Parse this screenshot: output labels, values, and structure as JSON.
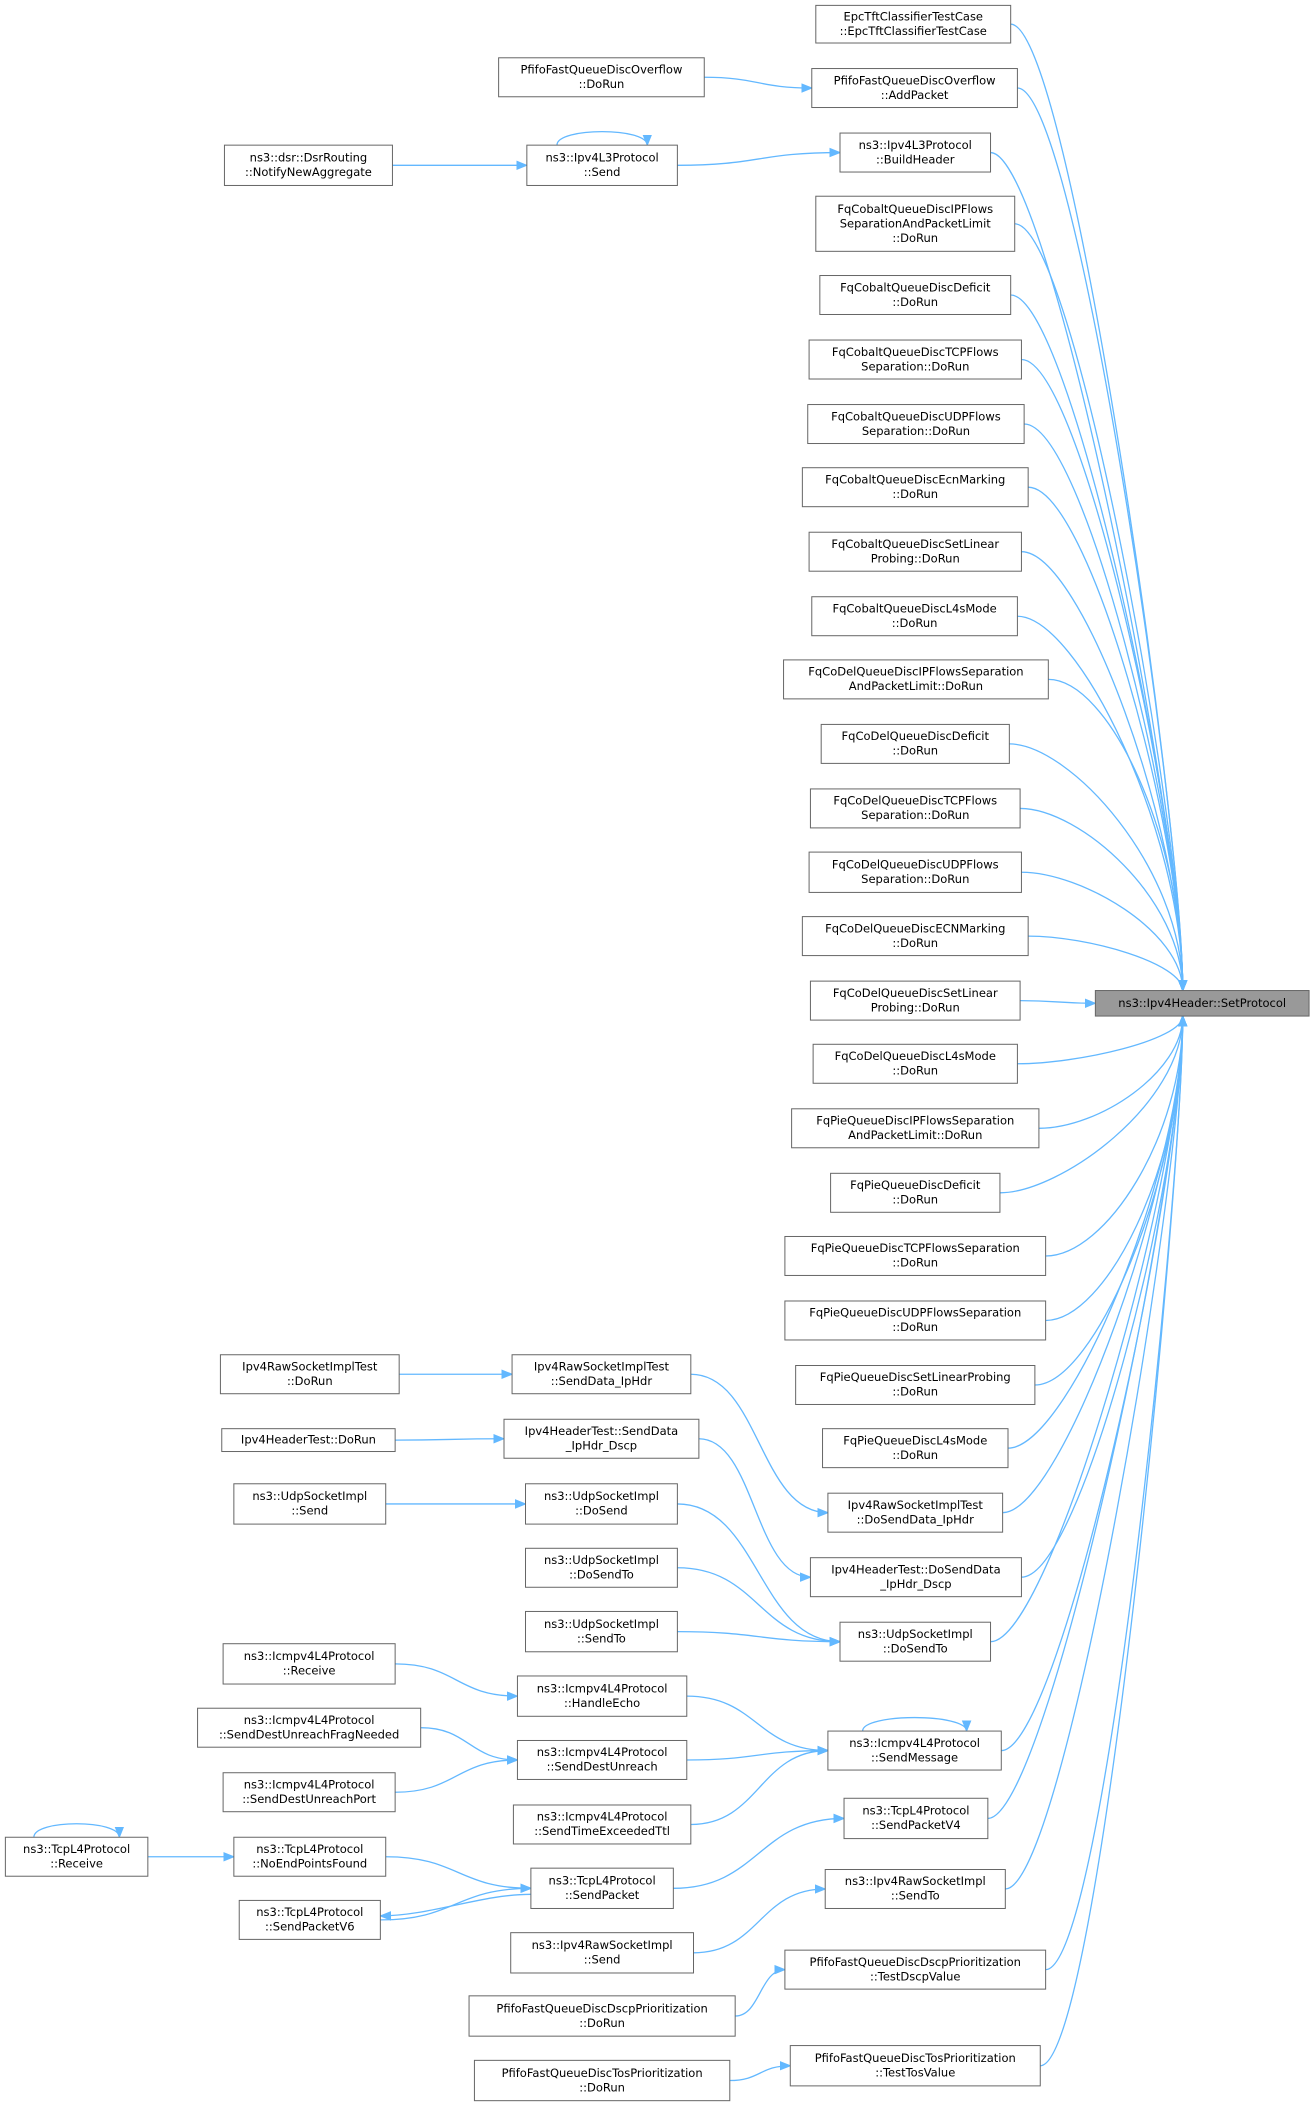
{
  "nodes": [
    {
      "lines": [
        "ns3::Ipv4Header::SetProtocol"
      ]
    },
    {
      "lines": [
        "EpcTftClassifierTestCase",
        "::EpcTftClassifierTestCase"
      ]
    },
    {
      "lines": [
        "PfifoFastQueueDiscOverflow",
        "::AddPacket"
      ]
    },
    {
      "lines": [
        "ns3::Ipv4L3Protocol",
        "::BuildHeader"
      ]
    },
    {
      "lines": [
        "FqCobaltQueueDiscIPFlows",
        "SeparationAndPacketLimit",
        "::DoRun"
      ]
    },
    {
      "lines": [
        "FqCobaltQueueDiscDeficit",
        "::DoRun"
      ]
    },
    {
      "lines": [
        "FqCobaltQueueDiscTCPFlows",
        "Separation::DoRun"
      ]
    },
    {
      "lines": [
        "FqCobaltQueueDiscUDPFlows",
        "Separation::DoRun"
      ]
    },
    {
      "lines": [
        "FqCobaltQueueDiscEcnMarking",
        "::DoRun"
      ]
    },
    {
      "lines": [
        "FqCobaltQueueDiscSetLinear",
        "Probing::DoRun"
      ]
    },
    {
      "lines": [
        "FqCobaltQueueDiscL4sMode",
        "::DoRun"
      ]
    },
    {
      "lines": [
        "FqCoDelQueueDiscIPFlowsSeparation",
        "AndPacketLimit::DoRun"
      ]
    },
    {
      "lines": [
        "FqCoDelQueueDiscDeficit",
        "::DoRun"
      ]
    },
    {
      "lines": [
        "FqCoDelQueueDiscTCPFlows",
        "Separation::DoRun"
      ]
    },
    {
      "lines": [
        "FqCoDelQueueDiscUDPFlows",
        "Separation::DoRun"
      ]
    },
    {
      "lines": [
        "FqCoDelQueueDiscECNMarking",
        "::DoRun"
      ]
    },
    {
      "lines": [
        "FqCoDelQueueDiscSetLinear",
        "Probing::DoRun"
      ]
    },
    {
      "lines": [
        "FqCoDelQueueDiscL4sMode",
        "::DoRun"
      ]
    },
    {
      "lines": [
        "FqPieQueueDiscIPFlowsSeparation",
        "AndPacketLimit::DoRun"
      ]
    },
    {
      "lines": [
        "FqPieQueueDiscDeficit",
        "::DoRun"
      ]
    },
    {
      "lines": [
        "FqPieQueueDiscTCPFlowsSeparation",
        "::DoRun"
      ]
    },
    {
      "lines": [
        "FqPieQueueDiscUDPFlowsSeparation",
        "::DoRun"
      ]
    },
    {
      "lines": [
        "FqPieQueueDiscSetLinearProbing",
        "::DoRun"
      ]
    },
    {
      "lines": [
        "FqPieQueueDiscL4sMode",
        "::DoRun"
      ]
    },
    {
      "lines": [
        "Ipv4RawSocketImplTest",
        "::DoSendData_IpHdr"
      ]
    },
    {
      "lines": [
        "Ipv4HeaderTest::DoSendData",
        "_IpHdr_Dscp"
      ]
    },
    {
      "lines": [
        "ns3::UdpSocketImpl",
        "::DoSendTo"
      ]
    },
    {
      "lines": [
        "ns3::Icmpv4L4Protocol",
        "::SendMessage"
      ]
    },
    {
      "lines": [
        "ns3::TcpL4Protocol",
        "::SendPacketV4"
      ]
    },
    {
      "lines": [
        "ns3::Ipv4RawSocketImpl",
        "::SendTo"
      ]
    },
    {
      "lines": [
        "PfifoFastQueueDiscDscpPrioritization",
        "::TestDscpValue"
      ]
    },
    {
      "lines": [
        "PfifoFastQueueDiscTosPrioritization",
        "::TestTosValue"
      ]
    },
    {
      "lines": [
        "PfifoFastQueueDiscOverflow",
        "::DoRun"
      ]
    },
    {
      "lines": [
        "ns3::Ipv4L3Protocol",
        "::Send"
      ]
    },
    {
      "lines": [
        "Ipv4RawSocketImplTest",
        "::SendData_IpHdr"
      ]
    },
    {
      "lines": [
        "Ipv4HeaderTest::SendData",
        "_IpHdr_Dscp"
      ]
    },
    {
      "lines": [
        "ns3::UdpSocketImpl",
        "::DoSend"
      ]
    },
    {
      "lines": [
        "ns3::UdpSocketImpl",
        "::DoSendTo"
      ]
    },
    {
      "lines": [
        "ns3::UdpSocketImpl",
        "::SendTo"
      ]
    },
    {
      "lines": [
        "ns3::Icmpv4L4Protocol",
        "::HandleEcho"
      ]
    },
    {
      "lines": [
        "ns3::Icmpv4L4Protocol",
        "::SendDestUnreach"
      ]
    },
    {
      "lines": [
        "ns3::Icmpv4L4Protocol",
        "::SendTimeExceededTtl"
      ]
    },
    {
      "lines": [
        "ns3::TcpL4Protocol",
        "::SendPacket"
      ]
    },
    {
      "lines": [
        "ns3::Ipv4RawSocketImpl",
        "::Send"
      ]
    },
    {
      "lines": [
        "PfifoFastQueueDiscDscpPrioritization",
        "::DoRun"
      ]
    },
    {
      "lines": [
        "PfifoFastQueueDiscTosPrioritization",
        "::DoRun"
      ]
    },
    {
      "lines": [
        "ns3::dsr::DsrRouting",
        "::NotifyNewAggregate"
      ]
    },
    {
      "lines": [
        "Ipv4RawSocketImplTest",
        "::DoRun"
      ]
    },
    {
      "lines": [
        "Ipv4HeaderTest::DoRun"
      ]
    },
    {
      "lines": [
        "ns3::UdpSocketImpl",
        "::Send"
      ]
    },
    {
      "lines": [
        "ns3::Icmpv4L4Protocol",
        "::Receive"
      ]
    },
    {
      "lines": [
        "ns3::Icmpv4L4Protocol",
        "::SendDestUnreachFragNeeded"
      ]
    },
    {
      "lines": [
        "ns3::Icmpv4L4Protocol",
        "::SendDestUnreachPort"
      ]
    },
    {
      "lines": [
        "ns3::TcpL4Protocol",
        "::NoEndPointsFound"
      ]
    },
    {
      "lines": [
        "ns3::TcpL4Protocol",
        "::SendPacketV6"
      ]
    },
    {
      "lines": [
        "ns3::TcpL4Protocol",
        "::Receive"
      ]
    }
  ]
}
